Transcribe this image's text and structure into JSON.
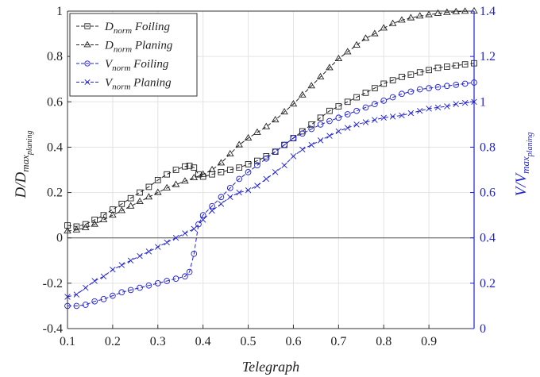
{
  "chart_data": {
    "type": "line",
    "xlabel": "Telegraph",
    "ylabel_left": {
      "main": "D/D",
      "sub": "max",
      "subsub": "planing"
    },
    "ylabel_right": {
      "main": "V/V",
      "sub": "max",
      "subsub": "planing"
    },
    "xlim": [
      0.1,
      1.0
    ],
    "ylim_left": [
      -0.4,
      1.0
    ],
    "ylim_right": [
      0,
      1.4
    ],
    "xticks": [
      0.1,
      0.2,
      0.3,
      0.4,
      0.5,
      0.6,
      0.7,
      0.8,
      0.9
    ],
    "xtick_labels": [
      "0.1",
      "0.2",
      "0.3",
      "0.4",
      "0.5",
      "0.6",
      "0.7",
      "0.8",
      "0.9"
    ],
    "yticks_left": [
      -0.4,
      -0.2,
      0,
      0.2,
      0.4,
      0.6,
      0.8,
      1
    ],
    "ytick_labels_left": [
      "-0.4",
      "-0.2",
      "0",
      "0.2",
      "0.4",
      "0.6",
      "0.8",
      "1"
    ],
    "yticks_right": [
      0,
      0.2,
      0.4,
      0.6,
      0.8,
      1,
      1.2,
      1.4
    ],
    "ytick_labels_right": [
      "0",
      "0.2",
      "0.4",
      "0.6",
      "0.8",
      "1",
      "1.2",
      "1.4"
    ],
    "grid": true,
    "zero_line": true,
    "legend_position": "top-left",
    "colors": {
      "black_series": "#222222",
      "blue_series": "#1f1fd6",
      "right_axis": "#1f1fd6"
    },
    "series": [
      {
        "name": "D_norm Foiling",
        "label_main": "D",
        "label_sub": "norm",
        "label_rest": " Foiling",
        "axis": "left",
        "color": "#222222",
        "marker": "square",
        "x": [
          0.1,
          0.12,
          0.14,
          0.16,
          0.18,
          0.2,
          0.22,
          0.24,
          0.26,
          0.28,
          0.3,
          0.32,
          0.34,
          0.36,
          0.37,
          0.38,
          0.39,
          0.4,
          0.42,
          0.44,
          0.46,
          0.48,
          0.5,
          0.52,
          0.54,
          0.56,
          0.58,
          0.6,
          0.62,
          0.64,
          0.66,
          0.68,
          0.7,
          0.72,
          0.74,
          0.76,
          0.78,
          0.8,
          0.82,
          0.84,
          0.86,
          0.88,
          0.9,
          0.92,
          0.94,
          0.96,
          0.98,
          1.0
        ],
        "y": [
          0.055,
          0.05,
          0.06,
          0.08,
          0.1,
          0.125,
          0.15,
          0.175,
          0.2,
          0.225,
          0.255,
          0.28,
          0.3,
          0.315,
          0.318,
          0.31,
          0.28,
          0.27,
          0.28,
          0.29,
          0.3,
          0.31,
          0.325,
          0.34,
          0.36,
          0.38,
          0.41,
          0.44,
          0.47,
          0.5,
          0.53,
          0.56,
          0.58,
          0.6,
          0.62,
          0.64,
          0.66,
          0.68,
          0.695,
          0.71,
          0.72,
          0.73,
          0.74,
          0.75,
          0.755,
          0.76,
          0.765,
          0.77
        ]
      },
      {
        "name": "D_norm Planing",
        "label_main": "D",
        "label_sub": "norm",
        "label_rest": " Planing",
        "axis": "left",
        "color": "#222222",
        "marker": "triangle",
        "x": [
          0.1,
          0.12,
          0.14,
          0.16,
          0.18,
          0.2,
          0.22,
          0.24,
          0.26,
          0.28,
          0.3,
          0.32,
          0.34,
          0.36,
          0.38,
          0.4,
          0.42,
          0.44,
          0.46,
          0.48,
          0.5,
          0.52,
          0.54,
          0.56,
          0.58,
          0.6,
          0.62,
          0.64,
          0.66,
          0.68,
          0.7,
          0.72,
          0.74,
          0.76,
          0.78,
          0.8,
          0.82,
          0.84,
          0.86,
          0.88,
          0.9,
          0.92,
          0.94,
          0.96,
          0.98,
          1.0
        ],
        "y": [
          0.03,
          0.035,
          0.045,
          0.06,
          0.08,
          0.1,
          0.12,
          0.14,
          0.16,
          0.18,
          0.2,
          0.22,
          0.235,
          0.25,
          0.265,
          0.28,
          0.3,
          0.33,
          0.37,
          0.41,
          0.44,
          0.465,
          0.49,
          0.52,
          0.555,
          0.59,
          0.63,
          0.67,
          0.71,
          0.75,
          0.79,
          0.82,
          0.85,
          0.88,
          0.9,
          0.925,
          0.945,
          0.96,
          0.97,
          0.978,
          0.984,
          0.99,
          0.994,
          0.997,
          0.999,
          1.0
        ]
      },
      {
        "name": "V_norm Foiling",
        "label_main": "V",
        "label_sub": "norm",
        "label_rest": " Foiling",
        "axis": "right",
        "color": "#1f1fd6",
        "marker": "circle",
        "x": [
          0.1,
          0.12,
          0.14,
          0.16,
          0.18,
          0.2,
          0.22,
          0.24,
          0.26,
          0.28,
          0.3,
          0.32,
          0.34,
          0.36,
          0.37,
          0.38,
          0.39,
          0.4,
          0.42,
          0.44,
          0.46,
          0.48,
          0.5,
          0.52,
          0.54,
          0.56,
          0.58,
          0.6,
          0.62,
          0.64,
          0.66,
          0.68,
          0.7,
          0.72,
          0.74,
          0.76,
          0.78,
          0.8,
          0.82,
          0.84,
          0.86,
          0.88,
          0.9,
          0.92,
          0.94,
          0.96,
          0.98,
          1.0
        ],
        "y": [
          0.1,
          0.1,
          0.105,
          0.12,
          0.13,
          0.145,
          0.16,
          0.17,
          0.18,
          0.19,
          0.2,
          0.21,
          0.22,
          0.23,
          0.25,
          0.33,
          0.46,
          0.5,
          0.54,
          0.58,
          0.62,
          0.66,
          0.69,
          0.72,
          0.75,
          0.78,
          0.81,
          0.84,
          0.86,
          0.88,
          0.9,
          0.915,
          0.93,
          0.945,
          0.96,
          0.975,
          0.99,
          1.005,
          1.02,
          1.035,
          1.045,
          1.055,
          1.06,
          1.065,
          1.07,
          1.075,
          1.08,
          1.085
        ]
      },
      {
        "name": "V_norm Planing",
        "label_main": "V",
        "label_sub": "norm",
        "label_rest": " Planing",
        "axis": "right",
        "color": "#1f1fd6",
        "marker": "x",
        "x": [
          0.1,
          0.12,
          0.14,
          0.16,
          0.18,
          0.2,
          0.22,
          0.24,
          0.26,
          0.28,
          0.3,
          0.32,
          0.34,
          0.36,
          0.38,
          0.4,
          0.42,
          0.44,
          0.46,
          0.48,
          0.5,
          0.52,
          0.54,
          0.56,
          0.58,
          0.6,
          0.62,
          0.64,
          0.66,
          0.68,
          0.7,
          0.72,
          0.74,
          0.76,
          0.78,
          0.8,
          0.82,
          0.84,
          0.86,
          0.88,
          0.9,
          0.92,
          0.94,
          0.96,
          0.98,
          1.0
        ],
        "y": [
          0.14,
          0.15,
          0.18,
          0.21,
          0.23,
          0.26,
          0.28,
          0.3,
          0.32,
          0.34,
          0.36,
          0.38,
          0.4,
          0.42,
          0.44,
          0.48,
          0.52,
          0.55,
          0.58,
          0.6,
          0.61,
          0.63,
          0.66,
          0.69,
          0.72,
          0.76,
          0.79,
          0.81,
          0.83,
          0.85,
          0.87,
          0.885,
          0.9,
          0.91,
          0.92,
          0.93,
          0.935,
          0.94,
          0.95,
          0.96,
          0.97,
          0.975,
          0.98,
          0.99,
          0.995,
          1.0
        ]
      }
    ]
  }
}
